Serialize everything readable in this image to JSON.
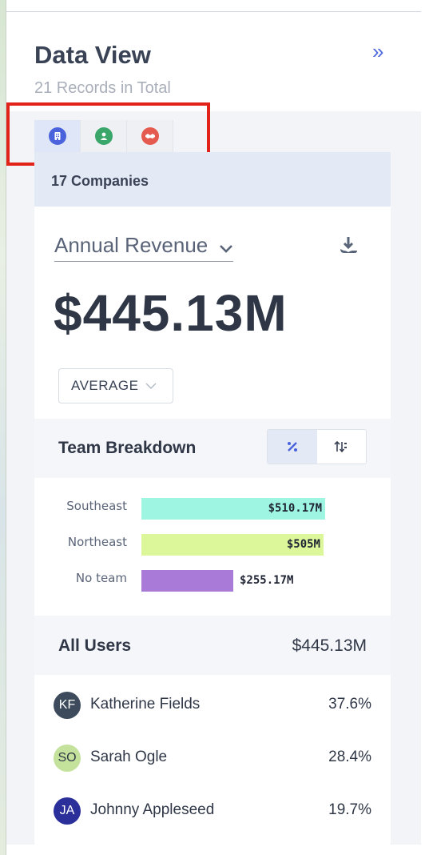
{
  "header": {
    "title": "Data View",
    "subtitle": "21 Records in Total",
    "collapse_icon": "double-chevron-right-icon"
  },
  "tabs": [
    {
      "icon": "building-icon",
      "color": "#4a63dd",
      "active": true
    },
    {
      "icon": "person-icon",
      "color": "#3aa66a",
      "active": false
    },
    {
      "icon": "handshake-icon",
      "color": "#e55a4f",
      "active": false
    }
  ],
  "summary": {
    "count_label": "17 Companies"
  },
  "metric": {
    "label": "Annual Revenue",
    "value": "$445.13M",
    "aggregation": "AVERAGE"
  },
  "team_breakdown": {
    "title": "Team Breakdown",
    "toggle": [
      "percent-icon",
      "sort-icon"
    ]
  },
  "chart_data": {
    "type": "bar",
    "orientation": "horizontal",
    "categories": [
      "Southeast",
      "Northeast",
      "No team"
    ],
    "values": [
      510.17,
      505,
      255.17
    ],
    "value_labels": [
      "$510.17M",
      "$505M",
      "$255.17M"
    ],
    "colors": [
      "#9df5e2",
      "#dcf79a",
      "#a97ad8"
    ],
    "xlim": [
      0,
      510.17
    ]
  },
  "users": {
    "title": "All Users",
    "total": "$445.13M",
    "rows": [
      {
        "initials": "KF",
        "name": "Katherine Fields",
        "pct": "37.6%",
        "bg": "#3e4b5c",
        "fg": "#ffffff"
      },
      {
        "initials": "SO",
        "name": "Sarah Ogle",
        "pct": "28.4%",
        "bg": "#c5e29c",
        "fg": "#2f3747"
      },
      {
        "initials": "JA",
        "name": "Johnny Appleseed",
        "pct": "19.7%",
        "bg": "#2b2f9a",
        "fg": "#ffffff"
      }
    ]
  }
}
